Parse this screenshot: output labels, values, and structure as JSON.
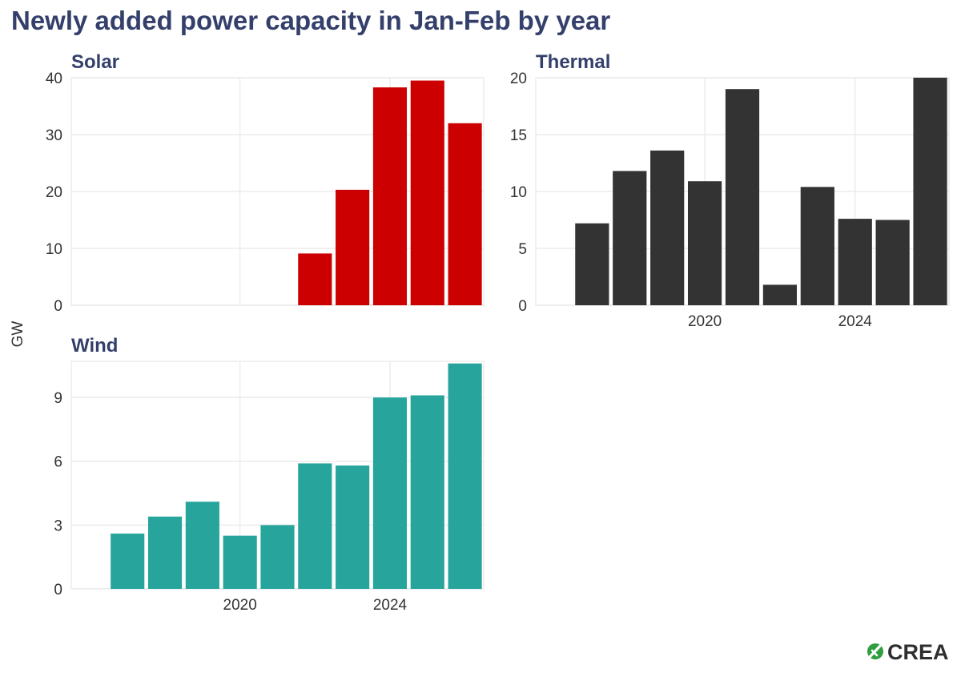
{
  "title": "Newly added power capacity in Jan-Feb by year",
  "logo": {
    "text": "CREA",
    "mark_color": "#2e9e3e"
  },
  "chart_data": {
    "type": "bar",
    "ylabel": "GW",
    "x_range": [
      2015.5,
      2026.5
    ],
    "x_ticks": [
      2020,
      2024
    ],
    "panels": [
      {
        "name": "Solar",
        "color": "#cc0000",
        "x": [
          2022,
          2023,
          2024,
          2025,
          2026
        ],
        "values": [
          9.1,
          20.3,
          38.3,
          39.5,
          32.0
        ],
        "ylim": [
          0,
          40
        ],
        "y_ticks": [
          0,
          10,
          20,
          30,
          40
        ],
        "x_tick_labels_visible": false
      },
      {
        "name": "Thermal",
        "color": "#333333",
        "x": [
          2017,
          2018,
          2019,
          2020,
          2021,
          2022,
          2023,
          2024,
          2025,
          2026
        ],
        "values": [
          7.2,
          11.8,
          13.6,
          10.9,
          19.0,
          1.8,
          10.4,
          7.6,
          7.5,
          20.0
        ],
        "ylim": [
          0,
          20
        ],
        "y_ticks": [
          0,
          5,
          10,
          15,
          20
        ],
        "x_tick_labels_visible": true
      },
      {
        "name": "Wind",
        "color": "#27a59c",
        "x": [
          2017,
          2018,
          2019,
          2020,
          2021,
          2022,
          2023,
          2024,
          2025,
          2026
        ],
        "values": [
          2.6,
          3.4,
          4.1,
          2.5,
          3.0,
          5.9,
          5.8,
          9.0,
          9.1,
          10.6
        ],
        "ylim": [
          0,
          10.7
        ],
        "y_ticks": [
          0,
          3,
          6,
          9
        ],
        "x_tick_labels_visible": true
      }
    ]
  }
}
